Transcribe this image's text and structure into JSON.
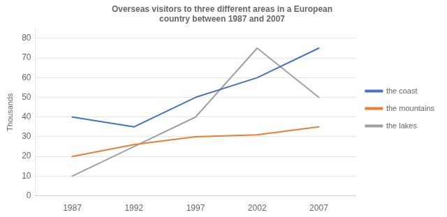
{
  "chart_data": {
    "type": "line",
    "title": "Overseas visitors to three different areas in a European\ncountry between 1987 and 2007",
    "y_label": "Thousands",
    "x": [
      1987,
      1992,
      1997,
      2002,
      2007
    ],
    "series": [
      {
        "name": "the coast",
        "color": "#4472C4",
        "values": [
          40,
          35,
          50,
          60,
          75
        ]
      },
      {
        "name": "the mountains",
        "color": "#ED7D31",
        "values": [
          20,
          26,
          30,
          31,
          35
        ]
      },
      {
        "name": "the lakes",
        "color": "#A0A0A0",
        "values": [
          10,
          25,
          40,
          75,
          50
        ]
      }
    ],
    "xlim": [
      1984,
      2010
    ],
    "xticks": [
      1987,
      1992,
      1997,
      2002,
      2007
    ],
    "ylim": [
      0,
      85
    ],
    "yticks": [
      0,
      10,
      20,
      30,
      40,
      50,
      60,
      70,
      80
    ],
    "grid": "y",
    "legend": "right"
  }
}
